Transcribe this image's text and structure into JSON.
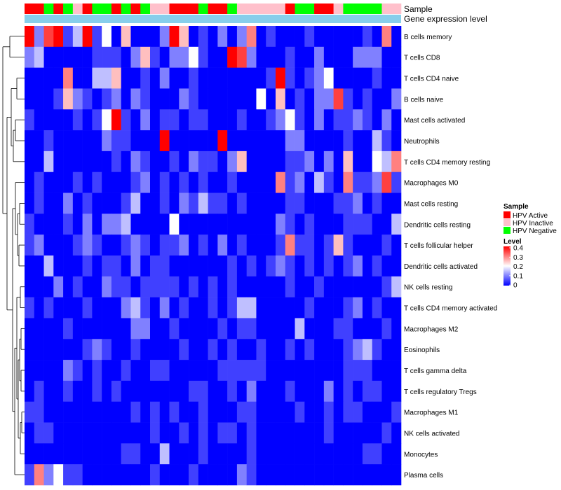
{
  "chart_data": {
    "type": "heatmap",
    "annotation_labels": [
      "Sample",
      "Gene expression level"
    ],
    "sample_legend": {
      "title": "Sample",
      "entries": [
        {
          "label": "HPV Active",
          "color": "#ff0000"
        },
        {
          "label": "HPV Inactive",
          "color": "#ffc0cb"
        },
        {
          "label": "HPV Negative",
          "color": "#00ff00"
        }
      ]
    },
    "level_legend": {
      "title": "Level",
      "ticks": [
        "0.4",
        "0.3",
        "0.2",
        "0.1",
        "0"
      ],
      "range": [
        0,
        0.4
      ],
      "colors": [
        "#0000ff",
        "#ffffff",
        "#ff0000"
      ]
    },
    "expression_bar_color": "#87ceeb",
    "sample_groups": [
      "A",
      "A",
      "N",
      "A",
      "N",
      "I",
      "A",
      "N",
      "N",
      "A",
      "N",
      "A",
      "N",
      "I",
      "I",
      "A",
      "A",
      "A",
      "N",
      "A",
      "A",
      "N",
      "I",
      "I",
      "I",
      "I",
      "I",
      "A",
      "N",
      "N",
      "A",
      "A",
      "I",
      "N",
      "N",
      "N",
      "N",
      "I",
      "I"
    ],
    "rows": [
      "B cells memory",
      "T cells CD8",
      "T cells CD4 naive",
      "B cells naive",
      "Mast cells activated",
      "Neutrophils",
      "T cells CD4 memory resting",
      "Macrophages M0",
      "Mast cells resting",
      "Dendritic cells resting",
      "T cells follicular helper",
      "Dendritic cells activated",
      "NK cells resting",
      "T cells CD4 memory activated",
      "Macrophages M2",
      "Eosinophils",
      "T cells gamma delta",
      "T cells regulatory  Tregs",
      "Macrophages M1",
      "NK cells activated",
      "Monocytes",
      "Plasma cells"
    ],
    "values": [
      [
        0.4,
        0.1,
        0.35,
        0.4,
        0.05,
        0.15,
        0.4,
        0.05,
        0.2,
        0.0,
        0.25,
        0.0,
        0.0,
        0.0,
        0.1,
        0.4,
        0.25,
        0.0,
        0.05,
        0.0,
        0.1,
        0.0,
        0.1,
        0.3,
        0.0,
        0.05,
        0.0,
        0.0,
        0.0,
        0.05,
        0.0,
        0.0,
        0.0,
        0.0,
        0.0,
        0.05,
        0.0,
        0.3,
        0.0
      ],
      [
        0.1,
        0.15,
        0.0,
        0.0,
        0.0,
        0.0,
        0.0,
        0.05,
        0.05,
        0.05,
        0.0,
        0.1,
        0.25,
        0.05,
        0.0,
        0.1,
        0.1,
        0.2,
        0.05,
        0.0,
        0.0,
        0.4,
        0.35,
        0.1,
        0.0,
        0.0,
        0.0,
        0.05,
        0.0,
        0.0,
        0.1,
        0.0,
        0.0,
        0.0,
        0.1,
        0.1,
        0.1,
        0.0,
        0.0
      ],
      [
        0.0,
        0.0,
        0.0,
        0.0,
        0.3,
        0.0,
        0.0,
        0.15,
        0.15,
        0.25,
        0.0,
        0.0,
        0.05,
        0.0,
        0.1,
        0.0,
        0.0,
        0.05,
        0.0,
        0.0,
        0.0,
        0.0,
        0.0,
        0.0,
        0.0,
        0.05,
        0.4,
        0.05,
        0.0,
        0.05,
        0.1,
        0.2,
        0.0,
        0.0,
        0.0,
        0.0,
        0.05,
        0.0,
        0.0
      ],
      [
        0.0,
        0.0,
        0.0,
        0.05,
        0.25,
        0.1,
        0.05,
        0.0,
        0.05,
        0.1,
        0.0,
        0.1,
        0.05,
        0.0,
        0.0,
        0.0,
        0.1,
        0.05,
        0.0,
        0.0,
        0.0,
        0.0,
        0.0,
        0.0,
        0.2,
        0.0,
        0.25,
        0.0,
        0.05,
        0.0,
        0.1,
        0.1,
        0.35,
        0.05,
        0.0,
        0.05,
        0.0,
        0.0,
        0.1
      ],
      [
        0.05,
        0.0,
        0.0,
        0.0,
        0.0,
        0.05,
        0.0,
        0.05,
        0.2,
        0.4,
        0.05,
        0.0,
        0.1,
        0.0,
        0.05,
        0.05,
        0.0,
        0.05,
        0.05,
        0.0,
        0.0,
        0.0,
        0.05,
        0.0,
        0.0,
        0.05,
        0.1,
        0.2,
        0.05,
        0.0,
        0.1,
        0.0,
        0.05,
        0.05,
        0.1,
        0.05,
        0.0,
        0.1,
        0.0
      ],
      [
        0.0,
        0.0,
        0.05,
        0.0,
        0.0,
        0.0,
        0.0,
        0.0,
        0.1,
        0.05,
        0.05,
        0.0,
        0.0,
        0.0,
        0.4,
        0.0,
        0.0,
        0.0,
        0.0,
        0.0,
        0.4,
        0.0,
        0.0,
        0.0,
        0.0,
        0.0,
        0.0,
        0.1,
        0.1,
        0.0,
        0.0,
        0.0,
        0.0,
        0.05,
        0.0,
        0.0,
        0.15,
        0.05,
        0.0
      ],
      [
        0.0,
        0.0,
        0.15,
        0.0,
        0.0,
        0.0,
        0.0,
        0.0,
        0.0,
        0.05,
        0.0,
        0.1,
        0.05,
        0.0,
        0.0,
        0.05,
        0.0,
        0.1,
        0.05,
        0.05,
        0.0,
        0.1,
        0.25,
        0.0,
        0.0,
        0.0,
        0.0,
        0.05,
        0.05,
        0.1,
        0.0,
        0.1,
        0.0,
        0.25,
        0.0,
        0.0,
        0.2,
        0.15,
        0.3
      ],
      [
        0.0,
        0.05,
        0.0,
        0.0,
        0.0,
        0.05,
        0.0,
        0.05,
        0.0,
        0.0,
        0.0,
        0.05,
        0.1,
        0.0,
        0.05,
        0.0,
        0.05,
        0.0,
        0.05,
        0.0,
        0.0,
        0.05,
        0.0,
        0.0,
        0.0,
        0.0,
        0.3,
        0.05,
        0.1,
        0.0,
        0.15,
        0.05,
        0.0,
        0.3,
        0.05,
        0.05,
        0.1,
        0.35,
        0.05
      ],
      [
        0.0,
        0.05,
        0.0,
        0.0,
        0.1,
        0.0,
        0.05,
        0.0,
        0.0,
        0.0,
        0.05,
        0.15,
        0.0,
        0.0,
        0.05,
        0.0,
        0.1,
        0.05,
        0.15,
        0.05,
        0.05,
        0.0,
        0.05,
        0.0,
        0.0,
        0.0,
        0.0,
        0.05,
        0.05,
        0.0,
        0.0,
        0.0,
        0.05,
        0.05,
        0.1,
        0.0,
        0.05,
        0.0,
        0.0
      ],
      [
        0.05,
        0.0,
        0.0,
        0.0,
        0.05,
        0.0,
        0.1,
        0.0,
        0.1,
        0.1,
        0.15,
        0.0,
        0.0,
        0.0,
        0.0,
        0.2,
        0.0,
        0.0,
        0.0,
        0.0,
        0.0,
        0.0,
        0.0,
        0.0,
        0.0,
        0.0,
        0.1,
        0.05,
        0.0,
        0.05,
        0.0,
        0.0,
        0.0,
        0.05,
        0.05,
        0.05,
        0.0,
        0.0,
        0.15
      ],
      [
        0.05,
        0.1,
        0.0,
        0.0,
        0.0,
        0.05,
        0.1,
        0.05,
        0.0,
        0.0,
        0.05,
        0.1,
        0.05,
        0.0,
        0.05,
        0.05,
        0.1,
        0.0,
        0.05,
        0.0,
        0.1,
        0.0,
        0.05,
        0.0,
        0.0,
        0.0,
        0.05,
        0.3,
        0.05,
        0.05,
        0.0,
        0.05,
        0.25,
        0.05,
        0.0,
        0.0,
        0.0,
        0.05,
        0.0
      ],
      [
        0.0,
        0.0,
        0.15,
        0.0,
        0.0,
        0.0,
        0.05,
        0.0,
        0.05,
        0.05,
        0.0,
        0.1,
        0.0,
        0.05,
        0.05,
        0.0,
        0.0,
        0.0,
        0.0,
        0.0,
        0.0,
        0.05,
        0.0,
        0.05,
        0.0,
        0.05,
        0.1,
        0.05,
        0.0,
        0.05,
        0.0,
        0.05,
        0.0,
        0.05,
        0.1,
        0.0,
        0.05,
        0.0,
        0.0
      ],
      [
        0.0,
        0.0,
        0.0,
        0.1,
        0.0,
        0.05,
        0.0,
        0.0,
        0.1,
        0.05,
        0.05,
        0.0,
        0.05,
        0.05,
        0.05,
        0.05,
        0.0,
        0.05,
        0.0,
        0.05,
        0.0,
        0.05,
        0.0,
        0.0,
        0.0,
        0.0,
        0.0,
        0.05,
        0.0,
        0.0,
        0.05,
        0.0,
        0.0,
        0.0,
        0.0,
        0.0,
        0.0,
        0.05,
        0.15
      ],
      [
        0.05,
        0.0,
        0.05,
        0.0,
        0.0,
        0.0,
        0.05,
        0.0,
        0.0,
        0.0,
        0.1,
        0.15,
        0.05,
        0.0,
        0.1,
        0.0,
        0.05,
        0.0,
        0.0,
        0.05,
        0.0,
        0.05,
        0.15,
        0.15,
        0.0,
        0.0,
        0.0,
        0.0,
        0.0,
        0.05,
        0.0,
        0.0,
        0.0,
        0.05,
        0.1,
        0.0,
        0.05,
        0.0,
        0.0
      ],
      [
        0.0,
        0.0,
        0.0,
        0.0,
        0.05,
        0.0,
        0.0,
        0.0,
        0.0,
        0.0,
        0.0,
        0.1,
        0.1,
        0.0,
        0.0,
        0.05,
        0.0,
        0.0,
        0.0,
        0.0,
        0.05,
        0.0,
        0.05,
        0.05,
        0.0,
        0.0,
        0.0,
        0.0,
        0.15,
        0.0,
        0.0,
        0.0,
        0.05,
        0.05,
        0.0,
        0.0,
        0.0,
        0.05,
        0.0
      ],
      [
        0.0,
        0.0,
        0.0,
        0.0,
        0.0,
        0.0,
        0.05,
        0.1,
        0.05,
        0.0,
        0.0,
        0.05,
        0.0,
        0.0,
        0.0,
        0.0,
        0.05,
        0.0,
        0.0,
        0.05,
        0.0,
        0.05,
        0.0,
        0.0,
        0.05,
        0.0,
        0.0,
        0.05,
        0.0,
        0.05,
        0.0,
        0.0,
        0.0,
        0.05,
        0.1,
        0.15,
        0.05,
        0.0,
        0.0
      ],
      [
        0.0,
        0.0,
        0.0,
        0.0,
        0.1,
        0.05,
        0.0,
        0.05,
        0.0,
        0.0,
        0.05,
        0.0,
        0.0,
        0.05,
        0.05,
        0.0,
        0.0,
        0.0,
        0.0,
        0.0,
        0.05,
        0.05,
        0.05,
        0.05,
        0.05,
        0.0,
        0.0,
        0.0,
        0.0,
        0.0,
        0.0,
        0.0,
        0.0,
        0.05,
        0.05,
        0.05,
        0.0,
        0.0,
        0.0
      ],
      [
        0.0,
        0.05,
        0.0,
        0.0,
        0.05,
        0.0,
        0.0,
        0.05,
        0.0,
        0.05,
        0.0,
        0.0,
        0.0,
        0.0,
        0.0,
        0.0,
        0.0,
        0.05,
        0.05,
        0.0,
        0.0,
        0.05,
        0.0,
        0.1,
        0.0,
        0.0,
        0.0,
        0.05,
        0.0,
        0.0,
        0.0,
        0.1,
        0.0,
        0.05,
        0.0,
        0.05,
        0.05,
        0.0,
        0.0
      ],
      [
        0.05,
        0.05,
        0.0,
        0.0,
        0.0,
        0.0,
        0.0,
        0.0,
        0.0,
        0.0,
        0.0,
        0.05,
        0.0,
        0.05,
        0.0,
        0.05,
        0.0,
        0.0,
        0.05,
        0.0,
        0.0,
        0.0,
        0.05,
        0.05,
        0.0,
        0.0,
        0.0,
        0.0,
        0.05,
        0.0,
        0.0,
        0.05,
        0.0,
        0.05,
        0.05,
        0.0,
        0.0,
        0.0,
        0.05
      ],
      [
        0.0,
        0.05,
        0.05,
        0.0,
        0.0,
        0.0,
        0.0,
        0.0,
        0.0,
        0.0,
        0.0,
        0.0,
        0.0,
        0.05,
        0.0,
        0.0,
        0.05,
        0.0,
        0.05,
        0.0,
        0.05,
        0.05,
        0.0,
        0.05,
        0.0,
        0.0,
        0.0,
        0.0,
        0.0,
        0.0,
        0.0,
        0.05,
        0.0,
        0.0,
        0.0,
        0.0,
        0.0,
        0.05,
        0.0
      ],
      [
        0.0,
        0.0,
        0.0,
        0.0,
        0.0,
        0.0,
        0.0,
        0.0,
        0.0,
        0.0,
        0.05,
        0.05,
        0.0,
        0.0,
        0.15,
        0.0,
        0.0,
        0.0,
        0.05,
        0.0,
        0.0,
        0.0,
        0.0,
        0.05,
        0.0,
        0.0,
        0.0,
        0.0,
        0.0,
        0.0,
        0.0,
        0.0,
        0.0,
        0.0,
        0.0,
        0.05,
        0.05,
        0.0,
        0.0
      ],
      [
        0.05,
        0.3,
        0.1,
        0.2,
        0.05,
        0.05,
        0.0,
        0.0,
        0.0,
        0.0,
        0.0,
        0.0,
        0.0,
        0.05,
        0.0,
        0.0,
        0.0,
        0.05,
        0.0,
        0.0,
        0.0,
        0.0,
        0.1,
        0.05,
        0.0,
        0.0,
        0.0,
        0.0,
        0.0,
        0.0,
        0.0,
        0.0,
        0.0,
        0.0,
        0.0,
        0.0,
        0.0,
        0.0,
        0.0
      ]
    ]
  }
}
